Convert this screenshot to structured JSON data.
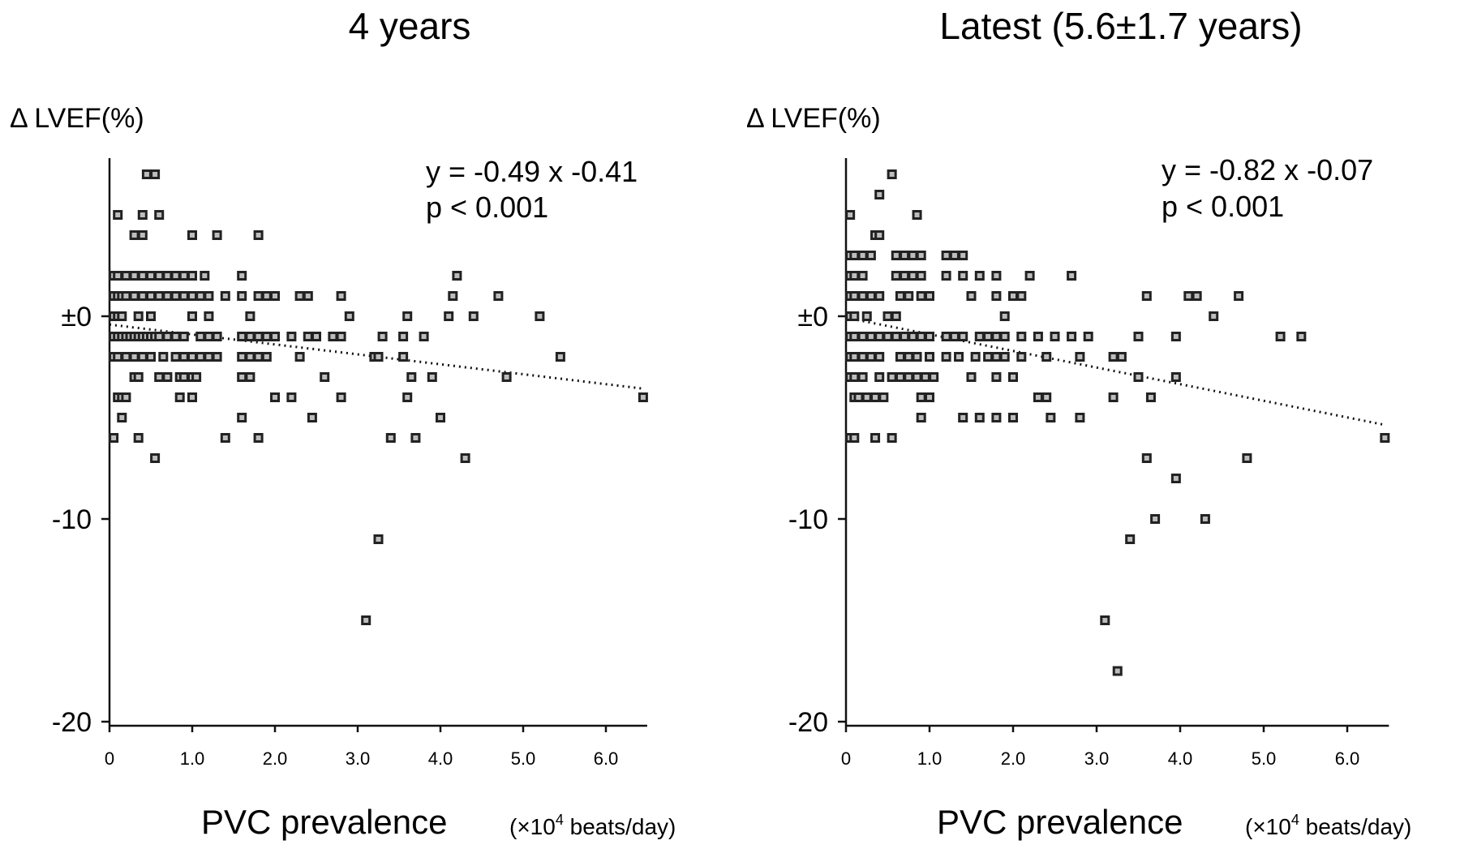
{
  "chart_data": [
    {
      "type": "scatter",
      "title": "4 years",
      "ylabel": "Δ LVEF(%)",
      "xlabel": "PVC prevalence",
      "xunit_prefix": "(×10",
      "xunit_sup": "4",
      "xunit_suffix": " beats/day)",
      "equation": "y = -0.49 x -0.41",
      "pvalue": "p < 0.001",
      "xlim": [
        0,
        6.45
      ],
      "ylim": [
        -20,
        9
      ],
      "xticks": [
        0,
        1,
        2,
        3,
        4,
        5,
        6
      ],
      "xtick_labels": [
        "0",
        "1.0",
        "2.0",
        "3.0",
        "4.0",
        "5.0",
        "6.0"
      ],
      "yticks": [
        0,
        -10,
        -20
      ],
      "ytick_labels": [
        "±0",
        "-10",
        "-20"
      ],
      "trend": {
        "slope": -0.49,
        "intercept": -0.41,
        "x_range": [
          0,
          6.45
        ]
      },
      "points": [
        [
          0.1,
          5
        ],
        [
          0.4,
          5
        ],
        [
          0.6,
          5
        ],
        [
          0.45,
          7
        ],
        [
          0.55,
          7
        ],
        [
          0.3,
          4
        ],
        [
          0.4,
          4
        ],
        [
          1.0,
          4
        ],
        [
          1.3,
          4
        ],
        [
          1.8,
          4
        ],
        [
          0.05,
          2
        ],
        [
          0.1,
          2
        ],
        [
          0.2,
          2
        ],
        [
          0.3,
          2
        ],
        [
          0.4,
          2
        ],
        [
          0.5,
          2
        ],
        [
          0.6,
          2
        ],
        [
          0.7,
          2
        ],
        [
          0.8,
          2
        ],
        [
          0.9,
          2
        ],
        [
          1.0,
          2
        ],
        [
          1.15,
          2
        ],
        [
          1.6,
          2
        ],
        [
          4.2,
          2
        ],
        [
          0.05,
          1
        ],
        [
          0.1,
          1
        ],
        [
          0.15,
          1
        ],
        [
          0.2,
          1
        ],
        [
          0.3,
          1
        ],
        [
          0.4,
          1
        ],
        [
          0.5,
          1
        ],
        [
          0.6,
          1
        ],
        [
          0.7,
          1
        ],
        [
          0.8,
          1
        ],
        [
          0.9,
          1
        ],
        [
          1.0,
          1
        ],
        [
          1.1,
          1
        ],
        [
          1.2,
          1
        ],
        [
          1.4,
          1
        ],
        [
          1.6,
          1
        ],
        [
          1.8,
          1
        ],
        [
          1.9,
          1
        ],
        [
          2.0,
          1
        ],
        [
          2.3,
          1
        ],
        [
          2.4,
          1
        ],
        [
          2.8,
          1
        ],
        [
          4.15,
          1
        ],
        [
          4.7,
          1
        ],
        [
          0.05,
          0
        ],
        [
          0.1,
          0
        ],
        [
          0.15,
          0
        ],
        [
          0.35,
          0
        ],
        [
          0.5,
          0
        ],
        [
          1.0,
          0
        ],
        [
          1.2,
          0
        ],
        [
          1.7,
          0
        ],
        [
          2.9,
          0
        ],
        [
          3.6,
          0
        ],
        [
          4.1,
          0
        ],
        [
          4.4,
          0
        ],
        [
          5.2,
          0
        ],
        [
          0.05,
          -1
        ],
        [
          0.1,
          -1
        ],
        [
          0.15,
          -1
        ],
        [
          0.2,
          -1
        ],
        [
          0.25,
          -1
        ],
        [
          0.3,
          -1
        ],
        [
          0.35,
          -1
        ],
        [
          0.4,
          -1
        ],
        [
          0.45,
          -1
        ],
        [
          0.5,
          -1
        ],
        [
          0.55,
          -1
        ],
        [
          0.6,
          -1
        ],
        [
          0.7,
          -1
        ],
        [
          0.8,
          -1
        ],
        [
          0.9,
          -1
        ],
        [
          1.1,
          -1
        ],
        [
          1.2,
          -1
        ],
        [
          1.3,
          -1
        ],
        [
          1.6,
          -1
        ],
        [
          1.7,
          -1
        ],
        [
          1.8,
          -1
        ],
        [
          1.9,
          -1
        ],
        [
          2.0,
          -1
        ],
        [
          2.2,
          -1
        ],
        [
          2.4,
          -1
        ],
        [
          2.5,
          -1
        ],
        [
          2.7,
          -1
        ],
        [
          2.8,
          -1
        ],
        [
          3.3,
          -1
        ],
        [
          3.55,
          -1
        ],
        [
          3.8,
          -1
        ],
        [
          0.05,
          -2
        ],
        [
          0.1,
          -2
        ],
        [
          0.2,
          -2
        ],
        [
          0.3,
          -2
        ],
        [
          0.4,
          -2
        ],
        [
          0.5,
          -2
        ],
        [
          0.65,
          -2
        ],
        [
          0.8,
          -2
        ],
        [
          0.9,
          -2
        ],
        [
          1.0,
          -2
        ],
        [
          1.1,
          -2
        ],
        [
          1.2,
          -2
        ],
        [
          1.3,
          -2
        ],
        [
          1.6,
          -2
        ],
        [
          1.7,
          -2
        ],
        [
          1.8,
          -2
        ],
        [
          1.9,
          -2
        ],
        [
          2.3,
          -2
        ],
        [
          3.2,
          -2
        ],
        [
          3.25,
          -2
        ],
        [
          3.55,
          -2
        ],
        [
          5.45,
          -2
        ],
        [
          0.3,
          -3
        ],
        [
          0.35,
          -3
        ],
        [
          0.6,
          -3
        ],
        [
          0.7,
          -3
        ],
        [
          0.85,
          -3
        ],
        [
          0.9,
          -3
        ],
        [
          1.0,
          -3
        ],
        [
          1.05,
          -3
        ],
        [
          1.6,
          -3
        ],
        [
          1.7,
          -3
        ],
        [
          2.6,
          -3
        ],
        [
          3.65,
          -3
        ],
        [
          3.9,
          -3
        ],
        [
          4.8,
          -3
        ],
        [
          0.1,
          -4
        ],
        [
          0.15,
          -4
        ],
        [
          0.2,
          -4
        ],
        [
          0.85,
          -4
        ],
        [
          1.0,
          -4
        ],
        [
          2.0,
          -4
        ],
        [
          2.2,
          -4
        ],
        [
          2.8,
          -4
        ],
        [
          3.6,
          -4
        ],
        [
          6.45,
          -4
        ],
        [
          0.15,
          -5
        ],
        [
          1.6,
          -5
        ],
        [
          2.45,
          -5
        ],
        [
          4.0,
          -5
        ],
        [
          0.05,
          -6
        ],
        [
          0.35,
          -6
        ],
        [
          1.4,
          -6
        ],
        [
          1.8,
          -6
        ],
        [
          3.4,
          -6
        ],
        [
          3.7,
          -6
        ],
        [
          0.55,
          -7
        ],
        [
          4.3,
          -7
        ],
        [
          3.25,
          -11
        ],
        [
          3.1,
          -15
        ]
      ]
    },
    {
      "type": "scatter",
      "title": "Latest (5.6±1.7 years)",
      "ylabel": "Δ LVEF(%)",
      "xlabel": "PVC prevalence",
      "xunit_prefix": "(×10",
      "xunit_sup": "4",
      "xunit_suffix": " beats/day)",
      "equation": "y = -0.82 x -0.07",
      "pvalue": "p < 0.001",
      "xlim": [
        0,
        6.45
      ],
      "ylim": [
        -20,
        9
      ],
      "xticks": [
        0,
        1,
        2,
        3,
        4,
        5,
        6
      ],
      "xtick_labels": [
        "0",
        "1.0",
        "2.0",
        "3.0",
        "4.0",
        "5.0",
        "6.0"
      ],
      "yticks": [
        0,
        -10,
        -20
      ],
      "ytick_labels": [
        "±0",
        "-10",
        "-20"
      ],
      "trend": {
        "slope": -0.82,
        "intercept": -0.07,
        "x_range": [
          0,
          6.45
        ]
      },
      "points": [
        [
          0.55,
          7
        ],
        [
          0.4,
          6
        ],
        [
          0.05,
          5
        ],
        [
          0.85,
          5
        ],
        [
          0.35,
          4
        ],
        [
          0.4,
          4
        ],
        [
          0.05,
          3
        ],
        [
          0.1,
          3
        ],
        [
          0.2,
          3
        ],
        [
          0.3,
          3
        ],
        [
          0.6,
          3
        ],
        [
          0.7,
          3
        ],
        [
          0.8,
          3
        ],
        [
          0.9,
          3
        ],
        [
          1.2,
          3
        ],
        [
          1.3,
          3
        ],
        [
          1.4,
          3
        ],
        [
          0.05,
          2
        ],
        [
          0.1,
          2
        ],
        [
          0.2,
          2
        ],
        [
          0.6,
          2
        ],
        [
          0.7,
          2
        ],
        [
          0.8,
          2
        ],
        [
          0.9,
          2
        ],
        [
          1.2,
          2
        ],
        [
          1.4,
          2
        ],
        [
          1.6,
          2
        ],
        [
          1.8,
          2
        ],
        [
          2.2,
          2
        ],
        [
          2.7,
          2
        ],
        [
          0.05,
          1
        ],
        [
          0.1,
          1
        ],
        [
          0.2,
          1
        ],
        [
          0.3,
          1
        ],
        [
          0.4,
          1
        ],
        [
          0.65,
          1
        ],
        [
          0.75,
          1
        ],
        [
          0.9,
          1
        ],
        [
          1.0,
          1
        ],
        [
          1.5,
          1
        ],
        [
          1.8,
          1
        ],
        [
          2.0,
          1
        ],
        [
          2.1,
          1
        ],
        [
          3.6,
          1
        ],
        [
          4.1,
          1
        ],
        [
          4.2,
          1
        ],
        [
          4.7,
          1
        ],
        [
          0.05,
          0
        ],
        [
          0.1,
          0
        ],
        [
          0.25,
          0
        ],
        [
          0.5,
          0
        ],
        [
          0.6,
          0
        ],
        [
          1.9,
          0
        ],
        [
          4.4,
          0
        ],
        [
          0.05,
          -1
        ],
        [
          0.1,
          -1
        ],
        [
          0.2,
          -1
        ],
        [
          0.3,
          -1
        ],
        [
          0.4,
          -1
        ],
        [
          0.5,
          -1
        ],
        [
          0.6,
          -1
        ],
        [
          0.7,
          -1
        ],
        [
          0.8,
          -1
        ],
        [
          0.9,
          -1
        ],
        [
          1.0,
          -1
        ],
        [
          1.2,
          -1
        ],
        [
          1.3,
          -1
        ],
        [
          1.4,
          -1
        ],
        [
          1.6,
          -1
        ],
        [
          1.7,
          -1
        ],
        [
          1.8,
          -1
        ],
        [
          1.9,
          -1
        ],
        [
          2.1,
          -1
        ],
        [
          2.3,
          -1
        ],
        [
          2.5,
          -1
        ],
        [
          2.7,
          -1
        ],
        [
          2.9,
          -1
        ],
        [
          3.5,
          -1
        ],
        [
          3.95,
          -1
        ],
        [
          5.2,
          -1
        ],
        [
          5.45,
          -1
        ],
        [
          0.05,
          -2
        ],
        [
          0.1,
          -2
        ],
        [
          0.2,
          -2
        ],
        [
          0.3,
          -2
        ],
        [
          0.4,
          -2
        ],
        [
          0.65,
          -2
        ],
        [
          0.75,
          -2
        ],
        [
          0.85,
          -2
        ],
        [
          1.0,
          -2
        ],
        [
          1.2,
          -2
        ],
        [
          1.35,
          -2
        ],
        [
          1.55,
          -2
        ],
        [
          1.7,
          -2
        ],
        [
          1.8,
          -2
        ],
        [
          1.9,
          -2
        ],
        [
          2.1,
          -2
        ],
        [
          2.4,
          -2
        ],
        [
          2.8,
          -2
        ],
        [
          3.2,
          -2
        ],
        [
          3.3,
          -2
        ],
        [
          0.05,
          -3
        ],
        [
          0.1,
          -3
        ],
        [
          0.2,
          -3
        ],
        [
          0.4,
          -3
        ],
        [
          0.55,
          -3
        ],
        [
          0.65,
          -3
        ],
        [
          0.75,
          -3
        ],
        [
          0.85,
          -3
        ],
        [
          0.95,
          -3
        ],
        [
          1.05,
          -3
        ],
        [
          1.5,
          -3
        ],
        [
          1.8,
          -3
        ],
        [
          2.0,
          -3
        ],
        [
          3.5,
          -3
        ],
        [
          3.95,
          -3
        ],
        [
          0.1,
          -4
        ],
        [
          0.15,
          -4
        ],
        [
          0.25,
          -4
        ],
        [
          0.35,
          -4
        ],
        [
          0.45,
          -4
        ],
        [
          0.9,
          -4
        ],
        [
          1.0,
          -4
        ],
        [
          2.3,
          -4
        ],
        [
          2.4,
          -4
        ],
        [
          3.2,
          -4
        ],
        [
          3.65,
          -4
        ],
        [
          0.9,
          -5
        ],
        [
          1.4,
          -5
        ],
        [
          1.6,
          -5
        ],
        [
          1.8,
          -5
        ],
        [
          2.0,
          -5
        ],
        [
          2.45,
          -5
        ],
        [
          2.8,
          -5
        ],
        [
          0.05,
          -6
        ],
        [
          0.1,
          -6
        ],
        [
          0.35,
          -6
        ],
        [
          0.55,
          -6
        ],
        [
          6.45,
          -6
        ],
        [
          3.6,
          -7
        ],
        [
          4.8,
          -7
        ],
        [
          3.95,
          -8
        ],
        [
          3.7,
          -10
        ],
        [
          4.3,
          -10
        ],
        [
          3.4,
          -11
        ],
        [
          3.1,
          -15
        ],
        [
          3.25,
          -17.5
        ]
      ]
    }
  ]
}
